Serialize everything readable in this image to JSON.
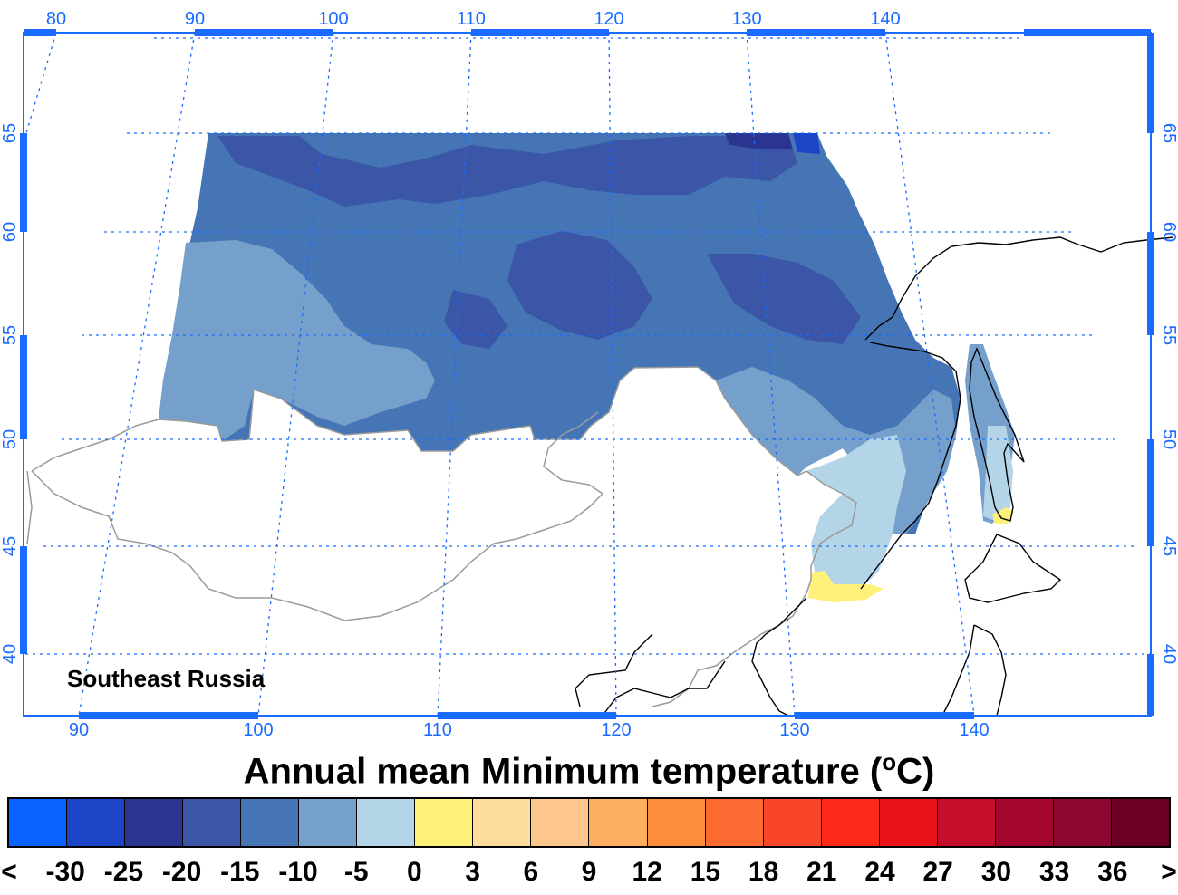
{
  "map": {
    "region_label": "Southeast Russia",
    "lon_ticks_top": [
      "80",
      "90",
      "100",
      "110",
      "120",
      "130",
      "140"
    ],
    "lon_ticks_bottom": [
      "90",
      "100",
      "110",
      "120",
      "130",
      "140"
    ],
    "lat_ticks": [
      "65",
      "60",
      "55",
      "50",
      "45",
      "40"
    ],
    "colors": {
      "graticule": "#1a6bff",
      "country_border": "#9a9a9a",
      "coastline": "#000000",
      "temp_minus20_to_minus15": "#3b55a7",
      "temp_minus15_to_minus10": "#4575b4",
      "temp_minus10_to_minus5": "#74a0cb",
      "temp_minus5_to_0": "#b4d5e8",
      "temp_0_to_3": "#fff07a"
    }
  },
  "legend": {
    "title_main": "Annual mean Minimum temperature (",
    "title_unit_sup": "o",
    "title_unit_end": "C)",
    "colors": [
      "#0b63ff",
      "#1c44c6",
      "#2b3590",
      "#3b55a7",
      "#4575b4",
      "#74a0cb",
      "#b4d5e8",
      "#fff07a",
      "#fedc9c",
      "#fdc68c",
      "#fdae61",
      "#fd8e3c",
      "#fc6a32",
      "#f9462b",
      "#fd2a1c",
      "#e81317",
      "#c50e2b",
      "#a4072e",
      "#8d0730",
      "#6c0024"
    ],
    "labels": [
      "<",
      "-30",
      "-25",
      "-20",
      "-15",
      "-10",
      "-5",
      "0",
      "3",
      "6",
      "9",
      "12",
      "15",
      "18",
      "21",
      "24",
      "27",
      "30",
      "33",
      "36",
      ">"
    ]
  }
}
